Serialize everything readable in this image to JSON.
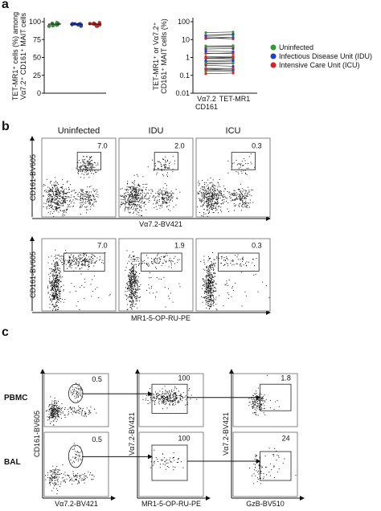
{
  "panel_a": {
    "label": "a",
    "left_plot": {
      "ylabel": [
        "TET-MR1⁺ cells (%) among",
        "Vα7.2⁺ CD161⁺ MAIT cells"
      ],
      "yticks": [
        "100",
        "75",
        "50",
        "25",
        "0"
      ]
    },
    "right_plot": {
      "ylabel": [
        "TET-MR1⁺ or Vα7.2⁺",
        "CD161⁺ MAIT cells (%)"
      ],
      "yticks": [
        "100",
        "10",
        "1",
        "0.1",
        "0.01"
      ],
      "xlabels": [
        [
          "Vα7.2",
          "CD161"
        ],
        [
          "TET-MR1"
        ]
      ]
    },
    "legend": [
      {
        "name": "Uninfected",
        "color": "#2e9a2e"
      },
      {
        "name": "Infectious Disease Unit (IDU)",
        "color": "#1f3fd0"
      },
      {
        "name": "Intensive Care Unit (ICU)",
        "color": "#e02020"
      }
    ]
  },
  "panel_b": {
    "label": "b",
    "columns": [
      "Uninfected",
      "IDU",
      "ICU"
    ],
    "rows": [
      {
        "ylabel": "CD161-BV605",
        "xlabel": "Vα7.2-BV421",
        "gates": [
          "7.0",
          "2.0",
          "0.3"
        ]
      },
      {
        "ylabel": "CD161-BV605",
        "xlabel": "MR1-5-OP-RU-PE",
        "gates": [
          "7.0",
          "1.9",
          "0.3"
        ]
      }
    ]
  },
  "panel_c": {
    "label": "c",
    "rows": [
      {
        "name": "PBMC",
        "gates": [
          "0.5",
          "100",
          "1.8"
        ]
      },
      {
        "name": "BAL",
        "gates": [
          "0.5",
          "100",
          "24"
        ]
      }
    ],
    "ylabels": [
      "CD161-BV605",
      "Vα7.2-BV421",
      "Vα7.2-BV421"
    ],
    "xlabels": [
      "Vα7.2-BV421",
      "MR1-5-OP-RU-PE",
      "GzB-BV510"
    ]
  }
}
